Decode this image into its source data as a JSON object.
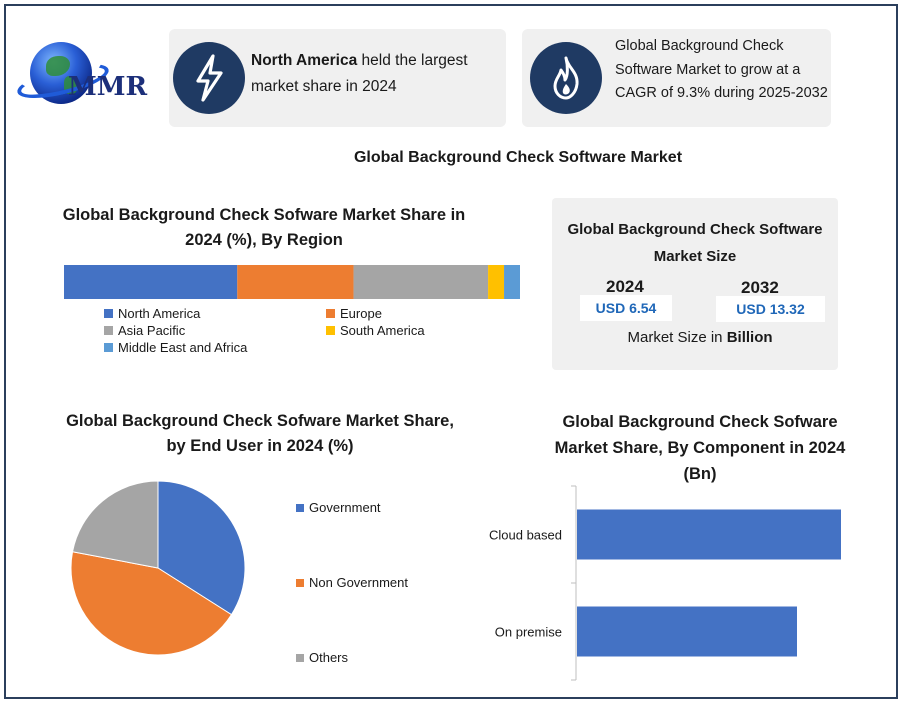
{
  "logo": {
    "text": "MMR"
  },
  "highlight_cards": [
    {
      "icon": "lightning-bolt-icon",
      "bold": "North America",
      "text": " held the largest market share in 2024"
    },
    {
      "icon": "flame-icon",
      "text": "Global Background Check Software Market to grow at a CAGR of 9.3% during 2025-2032"
    }
  ],
  "main_title": "Global Background Check Software Market",
  "market_size": {
    "title": "Global Background Check Software Market Size",
    "year1": "2024",
    "value1": "USD 6.54",
    "year2": "2032",
    "value2": "USD 13.32",
    "unit_prefix": "Market Size in ",
    "unit_bold": "Billion"
  },
  "colors": {
    "north_america": "#4472c4",
    "europe": "#ed7d31",
    "asia_pacific": "#a5a5a5",
    "south_america": "#ffc000",
    "mea": "#5b9bd5",
    "navy": "#1f3a63"
  },
  "chart_data": [
    {
      "id": "region",
      "type": "bar",
      "stacked": true,
      "orientation": "horizontal",
      "title": "Global Background Check Sofware Market Share in 2024 (%), By Region",
      "categories": [
        ""
      ],
      "series": [
        {
          "name": "North America",
          "values": [
            38
          ],
          "color": "#4472c4"
        },
        {
          "name": "Europe",
          "values": [
            25.5
          ],
          "color": "#ed7d31"
        },
        {
          "name": "Asia Pacific",
          "values": [
            29.5
          ],
          "color": "#a5a5a5"
        },
        {
          "name": "South America",
          "values": [
            3.5
          ],
          "color": "#ffc000"
        },
        {
          "name": "Middle East and Africa",
          "values": [
            3.5
          ],
          "color": "#5b9bd5"
        }
      ],
      "legend": "bottom"
    },
    {
      "id": "end_user",
      "type": "pie",
      "title": "Global Background Check Sofware Market Share, by End User in 2024 (%)",
      "slices": [
        {
          "name": "Government",
          "value": 34,
          "color": "#4472c4"
        },
        {
          "name": "Non Government",
          "value": 44,
          "color": "#ed7d31"
        },
        {
          "name": "Others",
          "value": 22,
          "color": "#a5a5a5"
        }
      ],
      "legend": "right"
    },
    {
      "id": "component",
      "type": "bar",
      "orientation": "horizontal",
      "title": "Global Background Check Sofware Market Share, By Component in 2024 (Bn)",
      "categories": [
        "Cloud based",
        "On premise"
      ],
      "values": [
        3.6,
        3.0
      ],
      "color": "#4472c4",
      "xlim": [
        0,
        4.5
      ],
      "grid": false
    }
  ]
}
